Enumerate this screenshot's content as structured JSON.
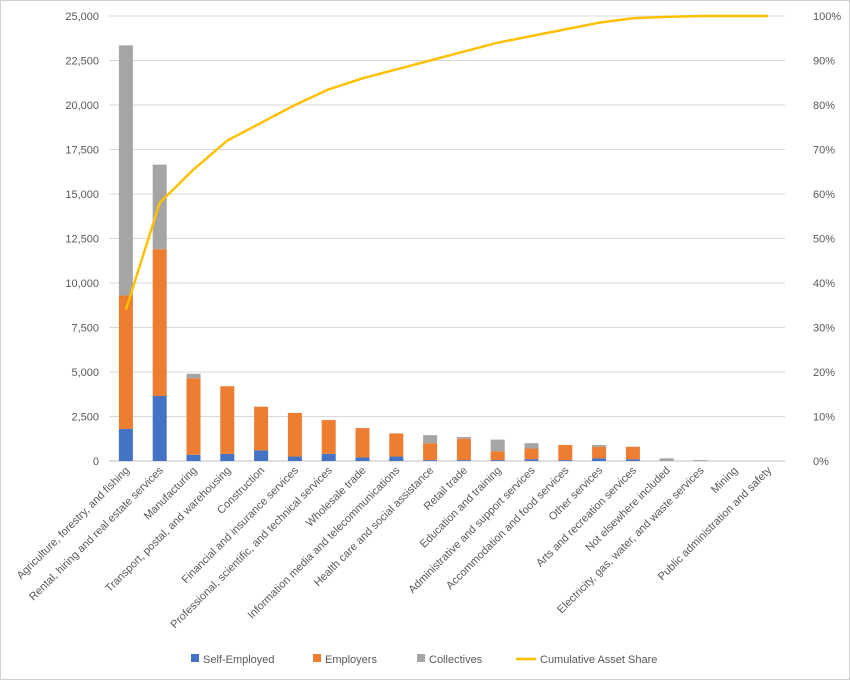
{
  "chart_data": {
    "type": "bar",
    "stacked": true,
    "categories": [
      "Agriculture, forestry, and fishing",
      "Rental, hiring and real estate services",
      "Manufacturing",
      "Transport, postal, and warehousing",
      "Construction",
      "Financial and insurance services",
      "Professional, scientific, and technical services",
      "Wholesale trade",
      "Information media and telecommunications",
      "Health care and social assistance",
      "Retail trade",
      "Education and training",
      "Administrative and support services",
      "Accommodation and food services",
      "Other services",
      "Arts and recreation services",
      "Not elsewhere included",
      "Electricity, gas, water, and waste services",
      "Mining",
      "Public administration and safety"
    ],
    "series": [
      {
        "name": "Self-Employed",
        "color": "#4472C4",
        "values": [
          1800,
          3650,
          350,
          400,
          600,
          250,
          400,
          200,
          250,
          50,
          50,
          50,
          100,
          50,
          150,
          100,
          0,
          0,
          0,
          0
        ]
      },
      {
        "name": "Employers",
        "color": "#ED7D31",
        "values": [
          7500,
          8250,
          4300,
          3800,
          2450,
          2450,
          1900,
          1650,
          1300,
          950,
          1200,
          500,
          600,
          850,
          650,
          700,
          0,
          0,
          0,
          0
        ]
      },
      {
        "name": "Collectives",
        "color": "#A5A5A5",
        "values": [
          14050,
          4750,
          250,
          0,
          0,
          0,
          0,
          0,
          0,
          450,
          100,
          650,
          300,
          0,
          100,
          0,
          150,
          50,
          0,
          0
        ]
      }
    ],
    "line_series": {
      "name": "Cumulative Asset Share",
      "color": "#FFC000",
      "axis": "right",
      "values": [
        0.34,
        0.58,
        0.655,
        0.72,
        0.76,
        0.8,
        0.835,
        0.86,
        0.88,
        0.9,
        0.92,
        0.94,
        0.955,
        0.97,
        0.985,
        0.995,
        0.998,
        1.0,
        1.0,
        1.0
      ]
    },
    "y_left": {
      "min": 0,
      "max": 25000,
      "ticks": [
        "0",
        "2,500",
        "5,000",
        "7,500",
        "10,000",
        "12,500",
        "15,000",
        "17,500",
        "20,000",
        "22,500",
        "25,000"
      ]
    },
    "y_right": {
      "min": 0,
      "max": 1,
      "ticks": [
        "0%",
        "10%",
        "20%",
        "30%",
        "40%",
        "50%",
        "60%",
        "70%",
        "80%",
        "90%",
        "100%"
      ]
    },
    "grid": true,
    "legend_position": "bottom"
  }
}
